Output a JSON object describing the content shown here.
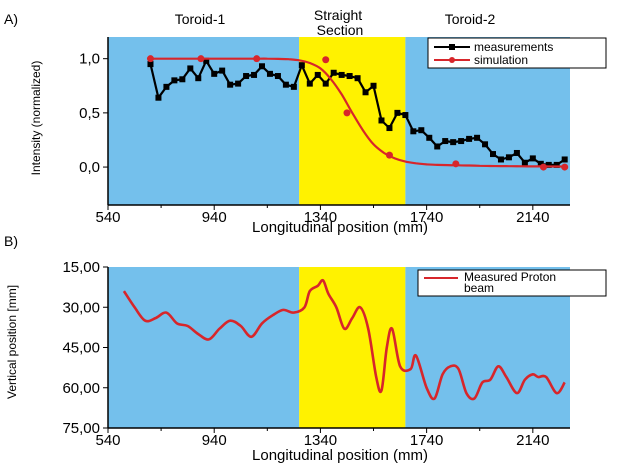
{
  "chart_data": [
    {
      "type": "line",
      "panel_label": "A)",
      "region_labels": [
        "Toroid-1",
        "Straight\nSection",
        "Toroid-2"
      ],
      "regions": [
        {
          "name": "Toroid-1",
          "x_from": 540,
          "x_to": 1260,
          "color": "#74C0EC"
        },
        {
          "name": "Straight Section",
          "x_from": 1260,
          "x_to": 1660,
          "color": "#FFF200"
        },
        {
          "name": "Toroid-2",
          "x_from": 1660,
          "x_to": 2280,
          "color": "#74C0EC"
        }
      ],
      "xlabel": "Longitudinal position (mm)",
      "ylabel": "Intensity (normalized)",
      "xlim": [
        540,
        2280
      ],
      "ylim": [
        -0.35,
        1.2
      ],
      "x_ticks": [
        540,
        940,
        1340,
        1740,
        2140
      ],
      "x_tick_labels": [
        "540",
        "940",
        "1340",
        "1740",
        "2140"
      ],
      "y_ticks": [
        0.0,
        0.5,
        1.0
      ],
      "y_tick_labels": [
        "0,0",
        "0,5",
        "1,0"
      ],
      "legend_position": "top-right",
      "series": [
        {
          "name": "measurements",
          "color": "#000000",
          "marker": "square",
          "x": [
            700,
            730,
            760,
            790,
            820,
            850,
            880,
            910,
            940,
            970,
            1000,
            1030,
            1060,
            1090,
            1120,
            1150,
            1180,
            1210,
            1240,
            1270,
            1300,
            1330,
            1360,
            1390,
            1420,
            1450,
            1480,
            1510,
            1540,
            1570,
            1600,
            1630,
            1660,
            1690,
            1720,
            1750,
            1780,
            1810,
            1840,
            1870,
            1900,
            1930,
            1960,
            1990,
            2020,
            2050,
            2080,
            2110,
            2140,
            2170,
            2200,
            2230,
            2260
          ],
          "y": [
            0.95,
            0.64,
            0.74,
            0.8,
            0.81,
            0.91,
            0.82,
            0.98,
            0.86,
            0.89,
            0.76,
            0.77,
            0.84,
            0.85,
            0.93,
            0.86,
            0.84,
            0.76,
            0.74,
            0.94,
            0.77,
            0.85,
            0.77,
            0.87,
            0.85,
            0.84,
            0.82,
            0.69,
            0.75,
            0.43,
            0.36,
            0.5,
            0.48,
            0.33,
            0.34,
            0.27,
            0.19,
            0.24,
            0.23,
            0.24,
            0.26,
            0.27,
            0.21,
            0.12,
            0.07,
            0.09,
            0.13,
            0.04,
            0.08,
            0.03,
            0.02,
            0.02,
            0.07
          ]
        },
        {
          "name": "simulation",
          "color": "#D7262B",
          "marker": "circle",
          "x": [
            700,
            740,
            780,
            820,
            860,
            900,
            940,
            980,
            1020,
            1060,
            1100,
            1140,
            1180,
            1220,
            1260,
            1300,
            1340,
            1380,
            1420,
            1460,
            1500,
            1540,
            1580,
            1620,
            1660,
            1700,
            1740,
            1780,
            1820,
            1860,
            1900,
            1940,
            1980,
            2020,
            2060,
            2100,
            2140,
            2180,
            2220,
            2260
          ],
          "y": [
            1.0,
            1.0,
            1.0,
            1.0,
            1.0,
            1.0,
            1.0,
            1.0,
            1.0,
            1.0,
            1.0,
            1.0,
            0.998,
            0.995,
            0.985,
            0.96,
            0.91,
            0.81,
            0.67,
            0.5,
            0.34,
            0.21,
            0.13,
            0.08,
            0.05,
            0.035,
            0.025,
            0.02,
            0.018,
            0.016,
            0.014,
            0.012,
            0.01,
            0.009,
            0.008,
            0.007,
            0.006,
            0.006,
            0.005,
            0.005
          ],
          "marker_x": [
            700,
            890,
            1100,
            1360,
            1440,
            1600,
            1850,
            2180,
            2260
          ],
          "marker_y": [
            1.0,
            1.0,
            1.0,
            0.99,
            0.5,
            0.11,
            0.03,
            0.0,
            0.0
          ]
        }
      ]
    },
    {
      "type": "line",
      "panel_label": "B)",
      "xlabel": "Longitudinal position (mm)",
      "ylabel": "Vertical position [mm]",
      "xlim": [
        540,
        2280
      ],
      "ylim": [
        75,
        15
      ],
      "x_ticks": [
        540,
        940,
        1340,
        1740,
        2140
      ],
      "x_tick_labels": [
        "540",
        "940",
        "1340",
        "1740",
        "2140"
      ],
      "y_ticks": [
        15,
        30,
        45,
        60,
        75
      ],
      "y_tick_labels": [
        "15,00",
        "30,00",
        "45,00",
        "60,00",
        "75,00"
      ],
      "legend_position": "top-right",
      "series": [
        {
          "name": "Measured Proton beam",
          "color": "#D7262B",
          "x": [
            600,
            640,
            680,
            720,
            760,
            800,
            840,
            880,
            920,
            960,
            1000,
            1040,
            1080,
            1120,
            1160,
            1200,
            1240,
            1280,
            1300,
            1330,
            1350,
            1370,
            1400,
            1430,
            1460,
            1490,
            1520,
            1550,
            1570,
            1590,
            1610,
            1640,
            1680,
            1700,
            1740,
            1770,
            1800,
            1830,
            1860,
            1890,
            1920,
            1950,
            1980,
            2010,
            2040,
            2080,
            2110,
            2140,
            2160,
            2190,
            2230,
            2260
          ],
          "y": [
            24,
            30,
            35,
            34,
            32,
            36,
            37,
            40,
            42,
            38,
            35,
            37,
            41,
            36,
            33,
            31,
            32,
            30,
            24,
            22,
            20,
            25,
            30,
            38,
            34,
            30,
            38,
            56,
            61,
            45,
            38,
            52,
            53,
            48,
            60,
            64,
            55,
            52,
            53,
            62,
            64,
            58,
            57,
            52,
            56,
            62,
            57,
            55,
            56,
            56,
            62,
            58
          ]
        }
      ]
    }
  ],
  "legend_labels": {
    "measurements": "measurements",
    "simulation": "simulation",
    "proton_line1": "Measured Proton",
    "proton_line2": "beam"
  }
}
